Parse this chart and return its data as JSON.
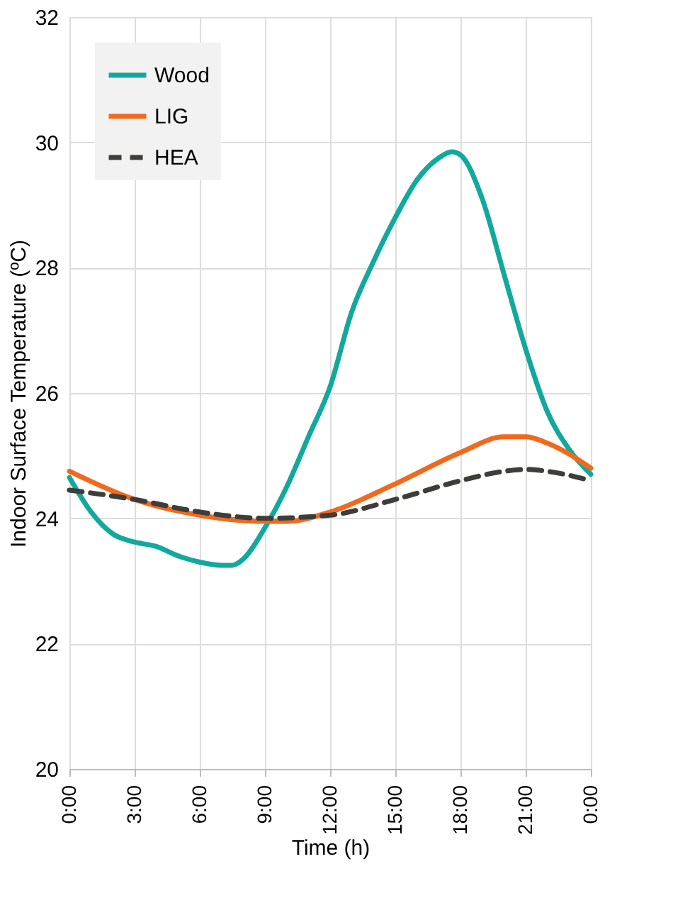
{
  "chart_data": {
    "type": "line",
    "xlabel": "Time (h)",
    "ylabel": "Indoor Surface Temperature (ºC)",
    "xlim": [
      0,
      24
    ],
    "xticks": [
      {
        "value": 0,
        "label": "0:00"
      },
      {
        "value": 3,
        "label": "3:00"
      },
      {
        "value": 6,
        "label": "6:00"
      },
      {
        "value": 9,
        "label": "9:00"
      },
      {
        "value": 12,
        "label": "12:00"
      },
      {
        "value": 15,
        "label": "15:00"
      },
      {
        "value": 18,
        "label": "18:00"
      },
      {
        "value": 21,
        "label": "21:00"
      },
      {
        "value": 24,
        "label": "0:00"
      }
    ],
    "ylim": [
      20,
      32
    ],
    "yticks": [
      20,
      22,
      24,
      26,
      28,
      30,
      32
    ],
    "grid": true,
    "legend": "top left",
    "series": [
      {
        "name": "Wood",
        "color": "#13a89e",
        "line_style": "solid",
        "x": [
          0,
          1,
          2,
          3,
          4,
          5,
          6,
          7,
          7.5,
          8,
          9,
          10,
          11,
          12,
          13,
          14,
          15,
          16,
          17,
          17.6,
          18,
          19,
          20,
          21,
          22,
          23,
          24
        ],
        "values": [
          24.65,
          24.1,
          23.75,
          23.62,
          23.55,
          23.4,
          23.3,
          23.25,
          23.25,
          23.35,
          23.85,
          24.5,
          25.3,
          26.1,
          27.3,
          28.1,
          28.8,
          29.4,
          29.75,
          29.85,
          29.8,
          29.1,
          27.9,
          26.7,
          25.7,
          25.1,
          24.7
        ]
      },
      {
        "name": "LIG",
        "color": "#f06a1e",
        "line_style": "solid",
        "x": [
          0,
          3,
          6,
          9,
          10,
          12,
          15,
          18,
          20,
          21,
          22,
          24
        ],
        "values": [
          24.75,
          24.3,
          24.05,
          23.95,
          23.95,
          24.1,
          24.55,
          25.05,
          25.3,
          25.3,
          25.2,
          24.8
        ]
      },
      {
        "name": "HEA",
        "color": "#403c3a",
        "line_style": "dashed",
        "x": [
          0,
          3,
          6,
          9,
          12,
          15,
          18,
          20,
          21,
          22,
          24
        ],
        "values": [
          24.45,
          24.3,
          24.1,
          24.0,
          24.05,
          24.3,
          24.6,
          24.75,
          24.78,
          24.75,
          24.6
        ]
      }
    ]
  }
}
